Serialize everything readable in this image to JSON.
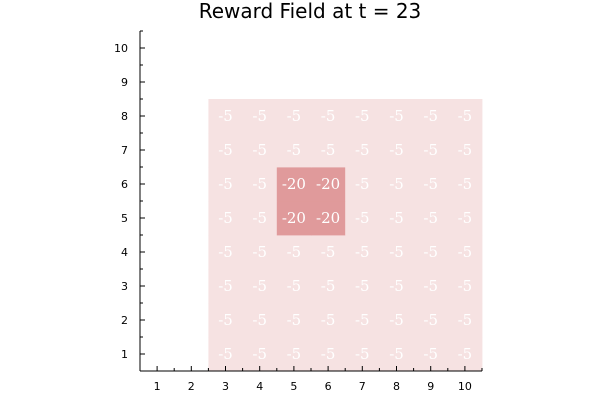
{
  "chart_data": {
    "type": "heatmap",
    "title": "Reward Field at t = 23",
    "xlabel": "",
    "ylabel": "",
    "xlim": [
      0.5,
      10.5
    ],
    "ylim": [
      0.5,
      10.5
    ],
    "xticks": [
      1,
      2,
      3,
      4,
      5,
      6,
      7,
      8,
      9,
      10
    ],
    "yticks": [
      1,
      2,
      3,
      4,
      5,
      6,
      7,
      8,
      9,
      10
    ],
    "grid": false,
    "legend": "none",
    "colors": {
      "-5": "#f6e2e2",
      "-20": "#e09a9b",
      "label": "#ffffff"
    },
    "cells": [
      {
        "x": 3,
        "y": 1,
        "value": -5
      },
      {
        "x": 4,
        "y": 1,
        "value": -5
      },
      {
        "x": 5,
        "y": 1,
        "value": -5
      },
      {
        "x": 6,
        "y": 1,
        "value": -5
      },
      {
        "x": 7,
        "y": 1,
        "value": -5
      },
      {
        "x": 8,
        "y": 1,
        "value": -5
      },
      {
        "x": 9,
        "y": 1,
        "value": -5
      },
      {
        "x": 10,
        "y": 1,
        "value": -5
      },
      {
        "x": 3,
        "y": 2,
        "value": -5
      },
      {
        "x": 4,
        "y": 2,
        "value": -5
      },
      {
        "x": 5,
        "y": 2,
        "value": -5
      },
      {
        "x": 6,
        "y": 2,
        "value": -5
      },
      {
        "x": 7,
        "y": 2,
        "value": -5
      },
      {
        "x": 8,
        "y": 2,
        "value": -5
      },
      {
        "x": 9,
        "y": 2,
        "value": -5
      },
      {
        "x": 10,
        "y": 2,
        "value": -5
      },
      {
        "x": 3,
        "y": 3,
        "value": -5
      },
      {
        "x": 4,
        "y": 3,
        "value": -5
      },
      {
        "x": 5,
        "y": 3,
        "value": -5
      },
      {
        "x": 6,
        "y": 3,
        "value": -5
      },
      {
        "x": 7,
        "y": 3,
        "value": -5
      },
      {
        "x": 8,
        "y": 3,
        "value": -5
      },
      {
        "x": 9,
        "y": 3,
        "value": -5
      },
      {
        "x": 10,
        "y": 3,
        "value": -5
      },
      {
        "x": 3,
        "y": 4,
        "value": -5
      },
      {
        "x": 4,
        "y": 4,
        "value": -5
      },
      {
        "x": 5,
        "y": 4,
        "value": -5
      },
      {
        "x": 6,
        "y": 4,
        "value": -5
      },
      {
        "x": 7,
        "y": 4,
        "value": -5
      },
      {
        "x": 8,
        "y": 4,
        "value": -5
      },
      {
        "x": 9,
        "y": 4,
        "value": -5
      },
      {
        "x": 10,
        "y": 4,
        "value": -5
      },
      {
        "x": 3,
        "y": 5,
        "value": -5
      },
      {
        "x": 4,
        "y": 5,
        "value": -5
      },
      {
        "x": 5,
        "y": 5,
        "value": -20
      },
      {
        "x": 6,
        "y": 5,
        "value": -20
      },
      {
        "x": 7,
        "y": 5,
        "value": -5
      },
      {
        "x": 8,
        "y": 5,
        "value": -5
      },
      {
        "x": 9,
        "y": 5,
        "value": -5
      },
      {
        "x": 10,
        "y": 5,
        "value": -5
      },
      {
        "x": 3,
        "y": 6,
        "value": -5
      },
      {
        "x": 4,
        "y": 6,
        "value": -5
      },
      {
        "x": 5,
        "y": 6,
        "value": -20
      },
      {
        "x": 6,
        "y": 6,
        "value": -20
      },
      {
        "x": 7,
        "y": 6,
        "value": -5
      },
      {
        "x": 8,
        "y": 6,
        "value": -5
      },
      {
        "x": 9,
        "y": 6,
        "value": -5
      },
      {
        "x": 10,
        "y": 6,
        "value": -5
      },
      {
        "x": 3,
        "y": 7,
        "value": -5
      },
      {
        "x": 4,
        "y": 7,
        "value": -5
      },
      {
        "x": 5,
        "y": 7,
        "value": -5
      },
      {
        "x": 6,
        "y": 7,
        "value": -5
      },
      {
        "x": 7,
        "y": 7,
        "value": -5
      },
      {
        "x": 8,
        "y": 7,
        "value": -5
      },
      {
        "x": 9,
        "y": 7,
        "value": -5
      },
      {
        "x": 10,
        "y": 7,
        "value": -5
      },
      {
        "x": 3,
        "y": 8,
        "value": -5
      },
      {
        "x": 4,
        "y": 8,
        "value": -5
      },
      {
        "x": 5,
        "y": 8,
        "value": -5
      },
      {
        "x": 6,
        "y": 8,
        "value": -5
      },
      {
        "x": 7,
        "y": 8,
        "value": -5
      },
      {
        "x": 8,
        "y": 8,
        "value": -5
      },
      {
        "x": 9,
        "y": 8,
        "value": -5
      },
      {
        "x": 10,
        "y": 8,
        "value": -5
      }
    ]
  }
}
